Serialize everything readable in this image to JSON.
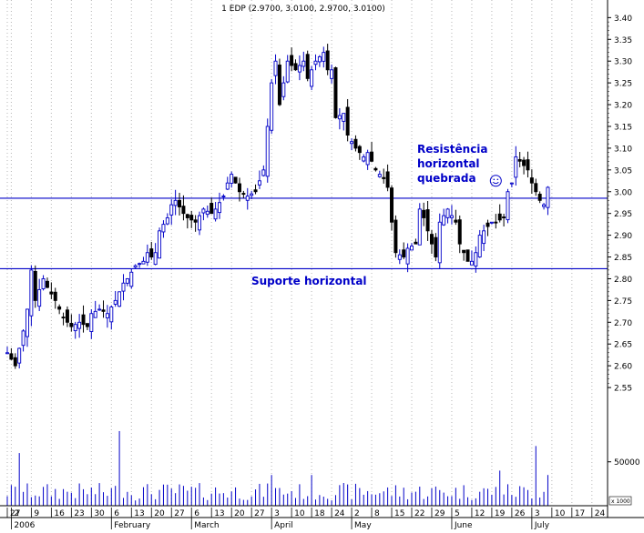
{
  "chart_data": {
    "type": "candlestick",
    "title": "1 EDP (2.9700, 3.0100, 2.9700, 3.0100)",
    "price_axis": {
      "min": 2.5,
      "max": 3.43,
      "ticks": [
        "2.55",
        "2.60",
        "2.65",
        "2.70",
        "2.75",
        "2.80",
        "2.85",
        "2.90",
        "2.95",
        "3.00",
        "3.05",
        "3.10",
        "3.15",
        "3.20",
        "3.25",
        "3.30",
        "3.35",
        "3.40"
      ]
    },
    "volume_axis": {
      "max": 115000,
      "tick": "50000",
      "unit_label": "x 1000"
    },
    "grid": true,
    "x_axis": {
      "ticks": [
        {
          "day": 0,
          "label": "27"
        },
        {
          "day": 1,
          "label": "2"
        },
        {
          "day": 6,
          "label": "9"
        },
        {
          "day": 11,
          "label": "16"
        },
        {
          "day": 16,
          "label": "23"
        },
        {
          "day": 21,
          "label": "30"
        },
        {
          "day": 26,
          "label": "6"
        },
        {
          "day": 31,
          "label": "13"
        },
        {
          "day": 36,
          "label": "20"
        },
        {
          "day": 41,
          "label": "27"
        },
        {
          "day": 46,
          "label": "6"
        },
        {
          "day": 51,
          "label": "13"
        },
        {
          "day": 56,
          "label": "20"
        },
        {
          "day": 61,
          "label": "27"
        },
        {
          "day": 66,
          "label": "3"
        },
        {
          "day": 71,
          "label": "10"
        },
        {
          "day": 76,
          "label": "18"
        },
        {
          "day": 81,
          "label": "24"
        },
        {
          "day": 86,
          "label": "2"
        },
        {
          "day": 91,
          "label": "8"
        },
        {
          "day": 96,
          "label": "15"
        },
        {
          "day": 101,
          "label": "22"
        },
        {
          "day": 106,
          "label": "29"
        },
        {
          "day": 111,
          "label": "5"
        },
        {
          "day": 116,
          "label": "12"
        },
        {
          "day": 121,
          "label": "19"
        },
        {
          "day": 126,
          "label": "26"
        },
        {
          "day": 131,
          "label": "3"
        },
        {
          "day": 136,
          "label": "10"
        },
        {
          "day": 141,
          "label": "17"
        },
        {
          "day": 146,
          "label": "24"
        }
      ],
      "months": [
        {
          "day": 1,
          "label": "2006"
        },
        {
          "day": 26,
          "label": "February"
        },
        {
          "day": 46,
          "label": "March"
        },
        {
          "day": 66,
          "label": "April"
        },
        {
          "day": 86,
          "label": "May"
        },
        {
          "day": 111,
          "label": "June"
        },
        {
          "day": 131,
          "label": "July"
        }
      ]
    },
    "horizontal_lines": [
      {
        "name": "resistance",
        "price": 2.985
      },
      {
        "name": "support",
        "price": 2.823
      }
    ],
    "annotations": [
      {
        "name": "resistance-label",
        "lines": [
          "Resistência",
          "horizontal",
          "quebrada"
        ]
      },
      {
        "name": "support-label",
        "lines": [
          "Suporte horizontal"
        ]
      }
    ],
    "smiley": {
      "day": 122,
      "price": 3.0
    },
    "keyframes": [
      [
        0,
        2.63
      ],
      [
        2,
        2.6
      ],
      [
        4,
        2.68
      ],
      [
        5,
        2.73
      ],
      [
        6,
        2.82
      ],
      [
        7,
        2.75
      ],
      [
        9,
        2.8
      ],
      [
        10,
        2.78
      ],
      [
        12,
        2.75
      ],
      [
        14,
        2.71
      ],
      [
        16,
        2.69
      ],
      [
        18,
        2.7
      ],
      [
        20,
        2.69
      ],
      [
        21,
        2.72
      ],
      [
        23,
        2.73
      ],
      [
        25,
        2.72
      ],
      [
        27,
        2.75
      ],
      [
        29,
        2.79
      ],
      [
        30,
        2.8
      ],
      [
        32,
        2.83
      ],
      [
        34,
        2.84
      ],
      [
        35,
        2.86
      ],
      [
        36,
        2.85
      ],
      [
        37,
        2.86
      ],
      [
        38,
        2.91
      ],
      [
        40,
        2.94
      ],
      [
        41,
        2.97
      ],
      [
        42,
        2.98
      ],
      [
        44,
        2.95
      ],
      [
        45,
        2.94
      ],
      [
        47,
        2.93
      ],
      [
        49,
        2.96
      ],
      [
        51,
        2.95
      ],
      [
        52,
        2.96
      ],
      [
        54,
        2.99
      ],
      [
        55,
        3.02
      ],
      [
        56,
        3.04
      ],
      [
        58,
        3.0
      ],
      [
        60,
        2.99
      ],
      [
        62,
        3.0
      ],
      [
        64,
        3.05
      ],
      [
        66,
        3.25
      ],
      [
        67,
        3.3
      ],
      [
        68,
        3.2
      ],
      [
        69,
        3.25
      ],
      [
        70,
        3.3
      ],
      [
        72,
        3.28
      ],
      [
        74,
        3.3
      ],
      [
        75,
        3.26
      ],
      [
        77,
        3.3
      ],
      [
        79,
        3.32
      ],
      [
        80,
        3.28
      ],
      [
        81,
        3.28
      ],
      [
        82,
        3.17
      ],
      [
        84,
        3.18
      ],
      [
        85,
        3.13
      ],
      [
        87,
        3.1
      ],
      [
        89,
        3.08
      ],
      [
        90,
        3.09
      ],
      [
        92,
        3.05
      ],
      [
        93,
        3.04
      ],
      [
        94,
        3.03
      ],
      [
        95,
        3.01
      ],
      [
        96,
        2.93
      ],
      [
        97,
        2.86
      ],
      [
        99,
        2.85
      ],
      [
        100,
        2.87
      ],
      [
        102,
        2.88
      ],
      [
        103,
        2.96
      ],
      [
        104,
        2.94
      ],
      [
        106,
        2.88
      ],
      [
        107,
        2.85
      ],
      [
        108,
        2.93
      ],
      [
        110,
        2.96
      ],
      [
        112,
        2.93
      ],
      [
        113,
        2.88
      ],
      [
        115,
        2.84
      ],
      [
        116,
        2.84
      ],
      [
        117,
        2.86
      ],
      [
        118,
        2.9
      ],
      [
        120,
        2.92
      ],
      [
        121,
        2.93
      ],
      [
        122,
        2.93
      ],
      [
        124,
        2.94
      ],
      [
        125,
        3.0
      ],
      [
        126,
        3.02
      ],
      [
        127,
        3.08
      ],
      [
        128,
        3.07
      ],
      [
        130,
        3.05
      ],
      [
        131,
        3.02
      ],
      [
        132,
        3.0
      ],
      [
        133,
        2.98
      ],
      [
        134,
        2.97
      ],
      [
        135,
        3.01
      ]
    ],
    "volume_spikes": [
      [
        3,
        60000
      ],
      [
        28,
        85000
      ],
      [
        66,
        35000
      ],
      [
        76,
        35000
      ],
      [
        123,
        40000
      ],
      [
        132,
        68000
      ],
      [
        135,
        35000
      ]
    ]
  }
}
